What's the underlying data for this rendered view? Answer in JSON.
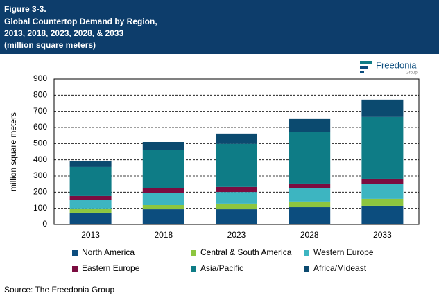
{
  "chart_data": {
    "type": "stacked_bar",
    "figure_label": "Figure 3-3.",
    "title": [
      "Global Countertop Demand by Region,",
      "2013, 2018, 2023, 2028, & 2033",
      "(million square meters)"
    ],
    "y_label": "million square meters",
    "categories": [
      "2013",
      "2018",
      "2023",
      "2028",
      "2033"
    ],
    "series": [
      {
        "name": "North America",
        "color": "#0c4d7e",
        "values": [
          73,
          94,
          94,
          107,
          116
        ]
      },
      {
        "name": "Central & South America",
        "color": "#8dc63f",
        "values": [
          26,
          26,
          35,
          35,
          43
        ]
      },
      {
        "name": "Western Europe",
        "color": "#3db5c1",
        "values": [
          55,
          73,
          72,
          81,
          90
        ]
      },
      {
        "name": "Eastern Europe",
        "color": "#7b0c40",
        "values": [
          22,
          30,
          31,
          30,
          34
        ]
      },
      {
        "name": "Asia/Pacific",
        "color": "#0e7c86",
        "values": [
          180,
          236,
          266,
          318,
          382
        ]
      },
      {
        "name": "Africa/Mideast",
        "color": "#0b4a6f",
        "values": [
          34,
          51,
          64,
          81,
          107
        ]
      }
    ],
    "ylim": [
      0,
      900
    ],
    "yticks": [
      0,
      100,
      200,
      300,
      400,
      500,
      600,
      700,
      800,
      900
    ],
    "grid": true
  },
  "logo": {
    "name": "Freedonia",
    "sub": "Group"
  },
  "source": "Source: The Freedonia Group"
}
